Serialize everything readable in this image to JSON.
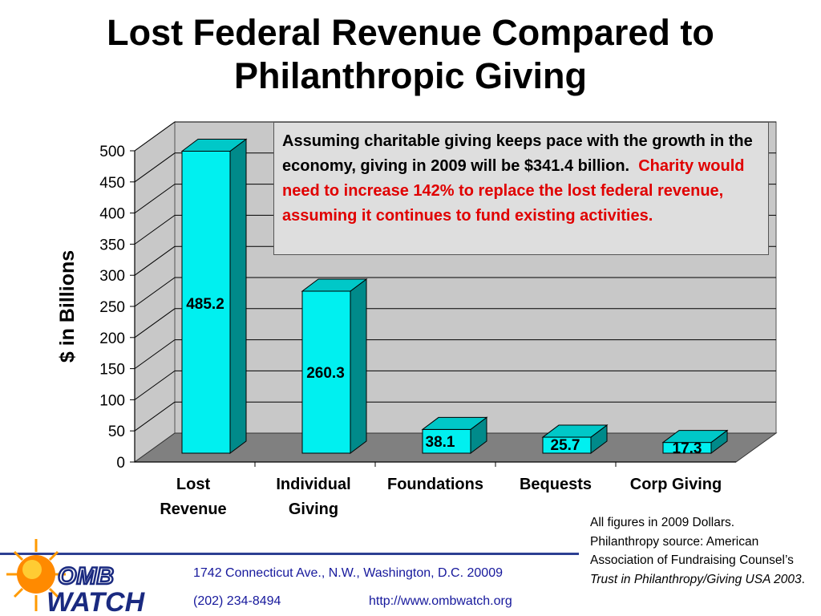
{
  "title": "Lost Federal Revenue Compared to Philanthropic Giving",
  "chart_data": {
    "type": "bar",
    "categories": [
      [
        "Lost",
        "Revenue"
      ],
      [
        "Individual",
        "Giving"
      ],
      [
        "Foundations"
      ],
      [
        "Bequests"
      ],
      [
        "Corp Giving"
      ]
    ],
    "values": [
      485.2,
      260.3,
      38.1,
      25.7,
      17.3
    ],
    "data_labels": [
      "485.2",
      "260.3",
      "38.1",
      "25.7",
      "17.3"
    ],
    "ylabel": "$ in Billions",
    "ylim": [
      0,
      500
    ],
    "yticks": [
      0,
      50,
      100,
      150,
      200,
      250,
      300,
      350,
      400,
      450,
      500
    ],
    "grid": true,
    "bar_color": "#00f0f0",
    "bar_side_color": "#008a8a",
    "bar_top_color": "#00c8c8",
    "wall_color": "#c8c8c8",
    "floor_color": "#808080"
  },
  "callout": {
    "black": "Assuming charitable giving keeps pace with the growth in the economy, giving in 2009 will be $341.4 billion.",
    "red": "Charity would need to increase 142% to replace the lost federal revenue, assuming it continues to fund existing activities."
  },
  "note": {
    "line1": "All figures in 2009 Dollars.",
    "line2": "Philanthropy source:  American Association of Fundraising Counsel’s",
    "italic": "Trust in Philanthropy/Giving USA 2003",
    "end": "."
  },
  "footer": {
    "address": "1742 Connecticut Ave., N.W., Washington, D.C. 20009",
    "phone": "(202) 234-8494",
    "url": "http://www.ombwatch.org"
  },
  "logo": {
    "line1": "OMB",
    "line2": "WATCH"
  }
}
